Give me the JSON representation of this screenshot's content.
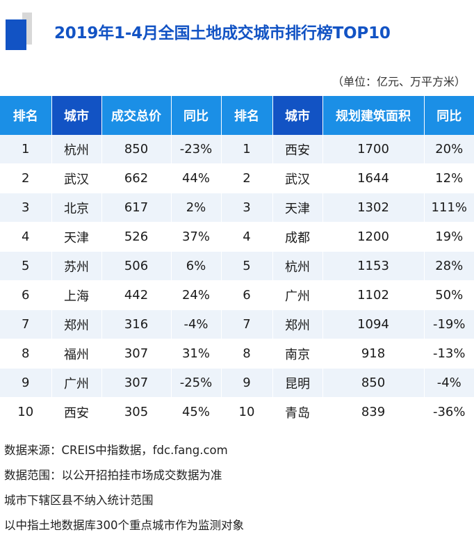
{
  "header": {
    "title": "2019年1-4月全国土地成交城市排行榜TOP10",
    "unit": "（单位：亿元、万平方米）"
  },
  "chart_data": {
    "type": "table",
    "title": "2019年1-4月全国土地成交城市排行榜TOP10",
    "unit": "（单位：亿元、万平方米）",
    "columns": [
      "排名",
      "城市",
      "成交总价",
      "同比",
      "排名",
      "城市",
      "规划建筑面积",
      "同比"
    ],
    "tables": [
      {
        "columns": [
          "排名",
          "城市",
          "成交总价",
          "同比"
        ],
        "rows": [
          [
            "1",
            "杭州",
            "850",
            "-23%"
          ],
          [
            "2",
            "武汉",
            "662",
            "44%"
          ],
          [
            "3",
            "北京",
            "617",
            "2%"
          ],
          [
            "4",
            "天津",
            "526",
            "37%"
          ],
          [
            "5",
            "苏州",
            "506",
            "6%"
          ],
          [
            "6",
            "上海",
            "442",
            "24%"
          ],
          [
            "7",
            "郑州",
            "316",
            "-4%"
          ],
          [
            "8",
            "福州",
            "307",
            "31%"
          ],
          [
            "9",
            "广州",
            "307",
            "-25%"
          ],
          [
            "10",
            "西安",
            "305",
            "45%"
          ]
        ]
      },
      {
        "columns": [
          "排名",
          "城市",
          "规划建筑面积",
          "同比"
        ],
        "rows": [
          [
            "1",
            "西安",
            "1700",
            "20%"
          ],
          [
            "2",
            "武汉",
            "1644",
            "12%"
          ],
          [
            "3",
            "天津",
            "1302",
            "111%"
          ],
          [
            "4",
            "成都",
            "1200",
            "19%"
          ],
          [
            "5",
            "杭州",
            "1153",
            "28%"
          ],
          [
            "6",
            "广州",
            "1102",
            "50%"
          ],
          [
            "7",
            "郑州",
            "1094",
            "-19%"
          ],
          [
            "8",
            "南京",
            "918",
            "-13%"
          ],
          [
            "9",
            "昆明",
            "850",
            "-4%"
          ],
          [
            "10",
            "青岛",
            "839",
            "-36%"
          ]
        ]
      }
    ]
  },
  "footer": [
    "数据来源：CREIS中指数据，fdc.fang.com",
    "数据范围：以公开招拍挂市场成交数据为准",
    "城市下辖区县不纳入统计范围",
    "以中指土地数据库300个重点城市作为监测对象"
  ],
  "colors": {
    "header_light": "#1b8fe6",
    "header_dark": "#1253c4",
    "title": "#1253c4",
    "row_band": "#edf3fa"
  }
}
